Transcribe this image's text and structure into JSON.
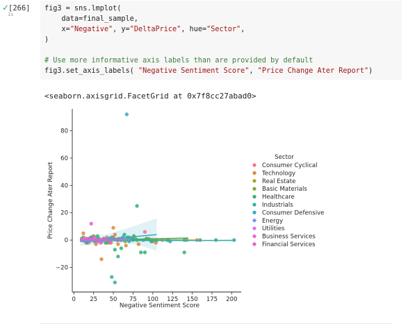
{
  "cell": {
    "status_check": "✓",
    "status_time": "1s",
    "execution_count": "[266]"
  },
  "code_lines": [
    {
      "segments": [
        {
          "t": "fig3 = sns.lmplot(",
          "c": ""
        }
      ]
    },
    {
      "segments": [
        {
          "t": "    data=final_sample,",
          "c": ""
        }
      ]
    },
    {
      "segments": [
        {
          "t": "    x=",
          "c": ""
        },
        {
          "t": "\"Negative\"",
          "c": "str"
        },
        {
          "t": ", y=",
          "c": ""
        },
        {
          "t": "\"DeltaPrice\"",
          "c": "str"
        },
        {
          "t": ", hue=",
          "c": ""
        },
        {
          "t": "\"Sector\"",
          "c": "str"
        },
        {
          "t": ",",
          "c": ""
        }
      ]
    },
    {
      "segments": [
        {
          "t": ")",
          "c": ""
        }
      ]
    },
    {
      "segments": [
        {
          "t": "",
          "c": ""
        }
      ]
    },
    {
      "segments": [
        {
          "t": "# Use more informative axis labels than are provided by default",
          "c": "cmt"
        }
      ]
    },
    {
      "segments": [
        {
          "t": "fig3.set_axis_labels( ",
          "c": ""
        },
        {
          "t": "\"Negative Sentiment Score\"",
          "c": "str"
        },
        {
          "t": ", ",
          "c": ""
        },
        {
          "t": "\"Price Change Ater Report\"",
          "c": "str"
        },
        {
          "t": ")",
          "c": ""
        }
      ]
    }
  ],
  "output_text": "<seaborn.axisgrid.FacetGrid at 0x7f8cc27abad0>",
  "chart_data": {
    "type": "scatter",
    "xlabel": "Negative Sentiment Score",
    "ylabel": "Price Change Ater Report",
    "xlim": [
      -2,
      212
    ],
    "ylim": [
      -38,
      96
    ],
    "x_ticks": [
      0,
      25,
      50,
      75,
      100,
      125,
      150,
      175,
      200
    ],
    "y_ticks": [
      -20,
      0,
      20,
      40,
      60,
      80
    ],
    "legend": {
      "title": "Sector",
      "placement": "right"
    },
    "series": [
      {
        "name": "Consumer Cyclical",
        "color": "#f77189",
        "points": [
          [
            10,
            0
          ],
          [
            14,
            1
          ],
          [
            18,
            -1
          ],
          [
            22,
            2
          ],
          [
            26,
            -1
          ],
          [
            30,
            0
          ],
          [
            38,
            1
          ],
          [
            45,
            -2
          ],
          [
            55,
            0
          ],
          [
            66,
            1
          ],
          [
            90,
            6
          ],
          [
            100,
            0
          ]
        ],
        "fit": [
          [
            8,
            0.1
          ],
          [
            100,
            0.3
          ]
        ]
      },
      {
        "name": "Technology",
        "color": "#dc8932",
        "points": [
          [
            12,
            5
          ],
          [
            18,
            -2
          ],
          [
            22,
            1
          ],
          [
            28,
            -3
          ],
          [
            35,
            -14
          ],
          [
            42,
            2
          ],
          [
            47,
            -2
          ],
          [
            50,
            9
          ],
          [
            52,
            4
          ],
          [
            56,
            -3
          ],
          [
            60,
            1
          ],
          [
            66,
            -4
          ],
          [
            70,
            2
          ],
          [
            82,
            -3
          ],
          [
            95,
            1
          ],
          [
            104,
            -2
          ],
          [
            112,
            0
          ],
          [
            156,
            0
          ]
        ],
        "fit": [
          [
            8,
            0.2
          ],
          [
            158,
            0
          ]
        ]
      },
      {
        "name": "Real Estate",
        "color": "#ae9d31",
        "points": [
          [
            10,
            0
          ],
          [
            15,
            1
          ],
          [
            20,
            -1
          ],
          [
            35,
            0
          ],
          [
            55,
            0
          ],
          [
            78,
            1
          ],
          [
            100,
            -1
          ],
          [
            120,
            0
          ],
          [
            143,
            0
          ]
        ],
        "fit": [
          [
            8,
            0
          ],
          [
            145,
            0
          ]
        ]
      },
      {
        "name": "Basic Materials",
        "color": "#77ab31",
        "points": [
          [
            12,
            2
          ],
          [
            18,
            -1
          ],
          [
            25,
            3
          ],
          [
            32,
            1
          ],
          [
            40,
            -2
          ],
          [
            50,
            2
          ],
          [
            57,
            1
          ],
          [
            65,
            -1
          ],
          [
            75,
            0
          ],
          [
            92,
            1
          ],
          [
            98,
            0
          ]
        ],
        "fit": [
          [
            8,
            0.5
          ],
          [
            100,
            0.2
          ]
        ]
      },
      {
        "name": "Healthcare",
        "color": "#33b07a",
        "points": [
          [
            10,
            1
          ],
          [
            16,
            -2
          ],
          [
            22,
            2
          ],
          [
            30,
            3
          ],
          [
            38,
            1
          ],
          [
            42,
            -2
          ],
          [
            48,
            2
          ],
          [
            52,
            -7
          ],
          [
            56,
            -12
          ],
          [
            60,
            -6
          ],
          [
            64,
            4
          ],
          [
            68,
            2
          ],
          [
            72,
            1
          ],
          [
            76,
            3
          ],
          [
            80,
            25
          ],
          [
            85,
            -9
          ],
          [
            90,
            -9
          ],
          [
            98,
            -1
          ],
          [
            104,
            0
          ],
          [
            118,
            0
          ],
          [
            140,
            -9
          ]
        ],
        "fit": [
          [
            8,
            -0.3
          ],
          [
            145,
            1.5
          ]
        ]
      },
      {
        "name": "Industrials",
        "color": "#36ada4",
        "points": [
          [
            10,
            0
          ],
          [
            15,
            -1
          ],
          [
            20,
            1
          ],
          [
            25,
            0
          ],
          [
            30,
            1
          ],
          [
            35,
            -1
          ],
          [
            40,
            0
          ],
          [
            45,
            1
          ],
          [
            48,
            -27
          ],
          [
            52,
            -31
          ],
          [
            60,
            0
          ],
          [
            70,
            -1
          ],
          [
            80,
            0
          ],
          [
            92,
            1
          ],
          [
            105,
            0
          ],
          [
            122,
            -1
          ],
          [
            140,
            0
          ],
          [
            160,
            0
          ],
          [
            180,
            0
          ],
          [
            203,
            0
          ]
        ],
        "fit": [
          [
            8,
            -0.5
          ],
          [
            205,
            -0.2
          ]
        ]
      },
      {
        "name": "Consumer Defensive",
        "color": "#38a9c5",
        "points": [
          [
            12,
            0
          ],
          [
            20,
            1
          ],
          [
            28,
            -1
          ],
          [
            35,
            0
          ],
          [
            45,
            1
          ],
          [
            55,
            0
          ],
          [
            62,
            2
          ],
          [
            67,
            92
          ],
          [
            75,
            1
          ],
          [
            88,
            0
          ],
          [
            100,
            0
          ]
        ],
        "fit": [
          [
            8,
            -1
          ],
          [
            105,
            4
          ]
        ]
      },
      {
        "name": "Energy",
        "color": "#6e9bf4",
        "points": [
          [
            10,
            0
          ],
          [
            15,
            1
          ],
          [
            20,
            -1
          ],
          [
            30,
            0
          ],
          [
            40,
            1
          ],
          [
            60,
            0
          ],
          [
            70,
            0
          ]
        ],
        "fit": [
          [
            8,
            0
          ],
          [
            72,
            0.3
          ]
        ]
      },
      {
        "name": "Utilities",
        "color": "#cc7af4",
        "points": [
          [
            12,
            0
          ],
          [
            18,
            1
          ],
          [
            24,
            0
          ],
          [
            30,
            -1
          ],
          [
            38,
            0
          ],
          [
            46,
            0
          ]
        ],
        "fit": [
          [
            8,
            0
          ],
          [
            48,
            0.1
          ]
        ]
      },
      {
        "name": "Business Services",
        "color": "#f565cc",
        "points": [
          [
            14,
            1
          ],
          [
            22,
            0
          ],
          [
            30,
            -1
          ],
          [
            40,
            0
          ],
          [
            50,
            1
          ],
          [
            60,
            0
          ]
        ],
        "fit": [
          [
            8,
            0
          ],
          [
            62,
            0.2
          ]
        ]
      },
      {
        "name": "Financial Services",
        "color": "#ea5bd8",
        "points": [
          [
            10,
            0
          ],
          [
            14,
            -1
          ],
          [
            18,
            1
          ],
          [
            22,
            12
          ],
          [
            26,
            2
          ],
          [
            30,
            0
          ],
          [
            34,
            -2
          ],
          [
            38,
            1
          ],
          [
            42,
            0
          ],
          [
            46,
            -1
          ],
          [
            50,
            1
          ],
          [
            56,
            0
          ]
        ],
        "fit": [
          [
            8,
            0.5
          ],
          [
            58,
            0.2
          ]
        ]
      }
    ],
    "ci_band": {
      "color": "#38a9c5",
      "upper": [
        [
          8,
          2
        ],
        [
          40,
          4
        ],
        [
          70,
          9
        ],
        [
          90,
          13
        ],
        [
          105,
          16
        ]
      ],
      "lower": [
        [
          8,
          -4
        ],
        [
          40,
          -3
        ],
        [
          70,
          -2
        ],
        [
          90,
          -5
        ],
        [
          105,
          -8
        ]
      ]
    }
  }
}
